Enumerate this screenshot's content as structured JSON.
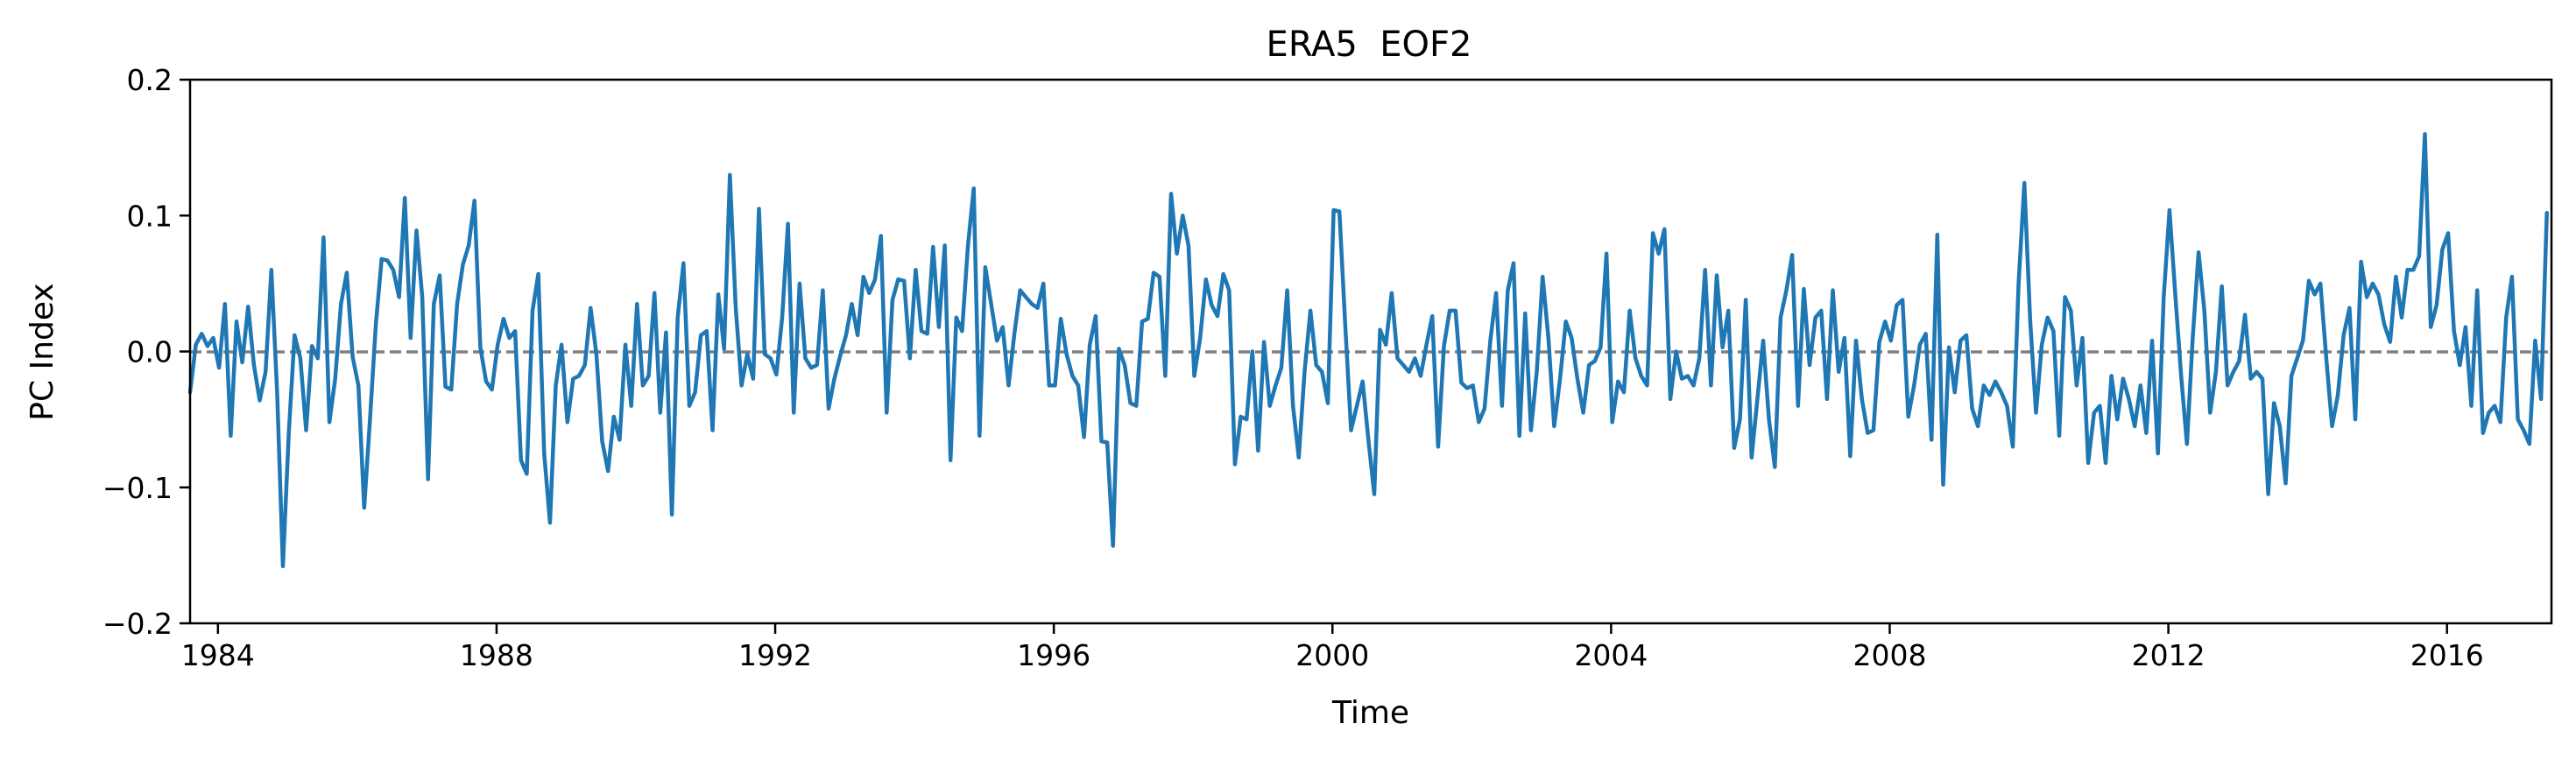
{
  "chart_data": {
    "type": "line",
    "title": "ERA5  EOF2",
    "xlabel": "Time",
    "ylabel": "PC Index",
    "xlim": [
      1983.6,
      2017.5
    ],
    "ylim": [
      -0.2,
      0.2
    ],
    "xticks": [
      1984,
      1988,
      1992,
      1996,
      2000,
      2004,
      2008,
      2012,
      2016
    ],
    "xtick_labels": [
      "1984",
      "1988",
      "1992",
      "1996",
      "2000",
      "2004",
      "2008",
      "2012",
      "2016"
    ],
    "yticks": [
      -0.2,
      -0.1,
      0.0,
      0.1,
      0.2
    ],
    "ytick_labels": [
      "−0.2",
      "−0.1",
      "0.0",
      "0.1",
      "0.2"
    ],
    "reference_line": {
      "y": 0.0,
      "style": "dashed",
      "color": "#808080"
    },
    "grid": false,
    "series": [
      {
        "color": "#1f77b4",
        "x_start": 1983.6,
        "x_step": 0.0833333,
        "values": [
          -0.03,
          0.005,
          0.013,
          0.004,
          0.01,
          -0.012,
          0.035,
          -0.062,
          0.022,
          -0.008,
          0.033,
          -0.01,
          -0.036,
          -0.015,
          0.06,
          -0.03,
          -0.158,
          -0.06,
          0.012,
          -0.005,
          -0.058,
          0.004,
          -0.005,
          0.084,
          -0.052,
          -0.02,
          0.035,
          0.058,
          -0.004,
          -0.025,
          -0.115,
          -0.05,
          0.02,
          0.068,
          0.067,
          0.06,
          0.04,
          0.113,
          0.01,
          0.089,
          0.04,
          -0.094,
          0.035,
          0.056,
          -0.026,
          -0.028,
          0.035,
          0.064,
          0.078,
          0.111,
          0.003,
          -0.022,
          -0.028,
          0.005,
          0.024,
          0.01,
          0.015,
          -0.08,
          -0.09,
          0.03,
          0.057,
          -0.075,
          -0.126,
          -0.025,
          0.005,
          -0.052,
          -0.02,
          -0.018,
          -0.01,
          0.032,
          -0.002,
          -0.066,
          -0.088,
          -0.048,
          -0.065,
          0.005,
          -0.04,
          0.035,
          -0.025,
          -0.018,
          0.043,
          -0.045,
          0.014,
          -0.12,
          0.025,
          0.065,
          -0.04,
          -0.03,
          0.012,
          0.015,
          -0.058,
          0.042,
          0.002,
          0.13,
          0.032,
          -0.025,
          -0.002,
          -0.02,
          0.105,
          -0.002,
          -0.005,
          -0.017,
          0.025,
          0.094,
          -0.045,
          0.05,
          -0.005,
          -0.012,
          -0.01,
          0.045,
          -0.042,
          -0.02,
          -0.003,
          0.012,
          0.035,
          0.012,
          0.055,
          0.043,
          0.053,
          0.085,
          -0.045,
          0.038,
          0.053,
          0.052,
          -0.005,
          0.06,
          0.015,
          0.013,
          0.077,
          0.018,
          0.078,
          -0.08,
          0.025,
          0.015,
          0.078,
          0.12,
          -0.062,
          0.062,
          0.035,
          0.008,
          0.018,
          -0.025,
          0.013,
          0.045,
          0.04,
          0.035,
          0.032,
          0.05,
          -0.025,
          -0.025,
          0.024,
          -0.002,
          -0.018,
          -0.025,
          -0.063,
          0.005,
          0.026,
          -0.066,
          -0.067,
          -0.143,
          0.002,
          -0.01,
          -0.038,
          -0.04,
          0.022,
          0.024,
          0.058,
          0.055,
          -0.018,
          0.116,
          0.072,
          0.1,
          0.078,
          -0.018,
          0.01,
          0.053,
          0.034,
          0.026,
          0.057,
          0.045,
          -0.083,
          -0.048,
          -0.05,
          0.0,
          -0.073,
          0.007,
          -0.04,
          -0.025,
          -0.012,
          0.045,
          -0.04,
          -0.078,
          -0.015,
          0.03,
          -0.01,
          -0.015,
          -0.038,
          0.104,
          0.103,
          0.02,
          -0.058,
          -0.04,
          -0.022,
          -0.065,
          -0.105,
          0.016,
          0.005,
          0.043,
          -0.005,
          -0.01,
          -0.015,
          -0.005,
          -0.018,
          0.005,
          0.026,
          -0.07,
          0.004,
          0.03,
          0.03,
          -0.023,
          -0.027,
          -0.025,
          -0.052,
          -0.042,
          0.008,
          0.043,
          -0.04,
          0.045,
          0.065,
          -0.062,
          0.028,
          -0.058,
          -0.015,
          0.055,
          0.01,
          -0.055,
          -0.02,
          0.022,
          0.01,
          -0.02,
          -0.045,
          -0.01,
          -0.007,
          0.003,
          0.072,
          -0.052,
          -0.022,
          -0.03,
          0.03,
          -0.005,
          -0.018,
          -0.025,
          0.087,
          0.072,
          0.09,
          -0.035,
          0.0,
          -0.02,
          -0.018,
          -0.025,
          -0.005,
          0.06,
          -0.025,
          0.056,
          0.003,
          0.03,
          -0.071,
          -0.05,
          0.038,
          -0.078,
          -0.035,
          0.008,
          -0.05,
          -0.085,
          0.025,
          0.045,
          0.071,
          -0.04,
          0.046,
          -0.01,
          0.025,
          0.03,
          -0.035,
          0.045,
          -0.015,
          0.01,
          -0.077,
          0.008,
          -0.035,
          -0.06,
          -0.058,
          0.007,
          0.022,
          0.008,
          0.034,
          0.038,
          -0.048,
          -0.025,
          0.005,
          0.013,
          -0.065,
          0.086,
          -0.098,
          0.003,
          -0.03,
          0.008,
          0.012,
          -0.042,
          -0.055,
          -0.025,
          -0.032,
          -0.022,
          -0.03,
          -0.04,
          -0.07,
          0.05,
          0.124,
          0.022,
          -0.045,
          0.005,
          0.025,
          0.015,
          -0.062,
          0.04,
          0.03,
          -0.025,
          0.01,
          -0.082,
          -0.045,
          -0.04,
          -0.082,
          -0.018,
          -0.05,
          -0.02,
          -0.035,
          -0.055,
          -0.025,
          -0.06,
          0.008,
          -0.075,
          0.04,
          0.104,
          0.042,
          -0.018,
          -0.068,
          0.01,
          0.073,
          0.03,
          -0.045,
          -0.015,
          0.048,
          -0.025,
          -0.015,
          -0.007,
          0.027,
          -0.02,
          -0.015,
          -0.02,
          -0.105,
          -0.038,
          -0.055,
          -0.097,
          -0.018,
          -0.005,
          0.008,
          0.052,
          0.042,
          0.05,
          -0.005,
          -0.055,
          -0.032,
          0.012,
          0.032,
          -0.05,
          0.066,
          0.04,
          0.05,
          0.042,
          0.02,
          0.007,
          0.055,
          0.025,
          0.06,
          0.06,
          0.07,
          0.16,
          0.018,
          0.034,
          0.075,
          0.087,
          0.015,
          -0.01,
          0.018,
          -0.04,
          0.045,
          -0.06,
          -0.045,
          -0.04,
          -0.052,
          0.025,
          0.055,
          -0.05,
          -0.058,
          -0.068,
          0.008,
          -0.035,
          0.102
        ]
      }
    ]
  }
}
